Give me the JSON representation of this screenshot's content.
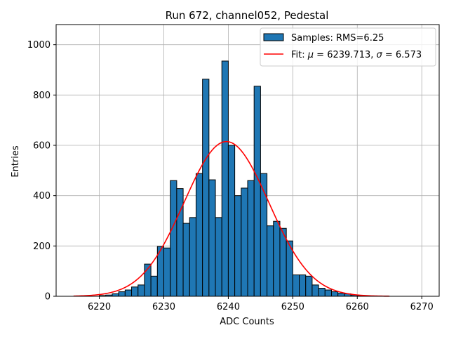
{
  "chart_data": {
    "type": "bar",
    "title": "Run 672, channel052, Pedestal",
    "xlabel": "ADC Counts",
    "ylabel": "Entries",
    "xlim": [
      6213.3,
      6272.7
    ],
    "ylim": [
      0,
      1080
    ],
    "x_ticks": [
      6220,
      6230,
      6240,
      6250,
      6260,
      6270
    ],
    "y_ticks": [
      0,
      200,
      400,
      600,
      800,
      1000
    ],
    "grid": true,
    "legend_position": "top-right",
    "histogram": {
      "name": "Samples: RMS=6.25",
      "color": "#1f77b4",
      "bin_width": 1,
      "bin_starts": [
        6220,
        6221,
        6222,
        6223,
        6224,
        6225,
        6226,
        6227,
        6228,
        6229,
        6230,
        6231,
        6232,
        6233,
        6234,
        6235,
        6236,
        6237,
        6238,
        6239,
        6240,
        6241,
        6242,
        6243,
        6244,
        6245,
        6246,
        6247,
        6248,
        6249,
        6250,
        6251,
        6252,
        6253,
        6254,
        6255,
        6256,
        6257,
        6258,
        6259,
        6260
      ],
      "counts": [
        3,
        5,
        10,
        18,
        25,
        37,
        45,
        128,
        80,
        198,
        192,
        460,
        428,
        290,
        313,
        488,
        863,
        463,
        313,
        935,
        600,
        400,
        430,
        460,
        835,
        488,
        280,
        298,
        270,
        220,
        85,
        85,
        80,
        45,
        32,
        25,
        18,
        12,
        10,
        5,
        2
      ]
    },
    "fit": {
      "name": "Fit: μ = 6239.713, σ = 6.573",
      "legend_label_prefix": "Fit: ",
      "mu_symbol": "μ",
      "mu_text": " = 6239.713, ",
      "sigma_symbol": "σ",
      "sigma_text": " = 6.573",
      "color": "#ff0000",
      "mu": 6239.713,
      "sigma": 6.573,
      "amplitude": 615,
      "x_range": [
        6216,
        6265
      ]
    }
  }
}
